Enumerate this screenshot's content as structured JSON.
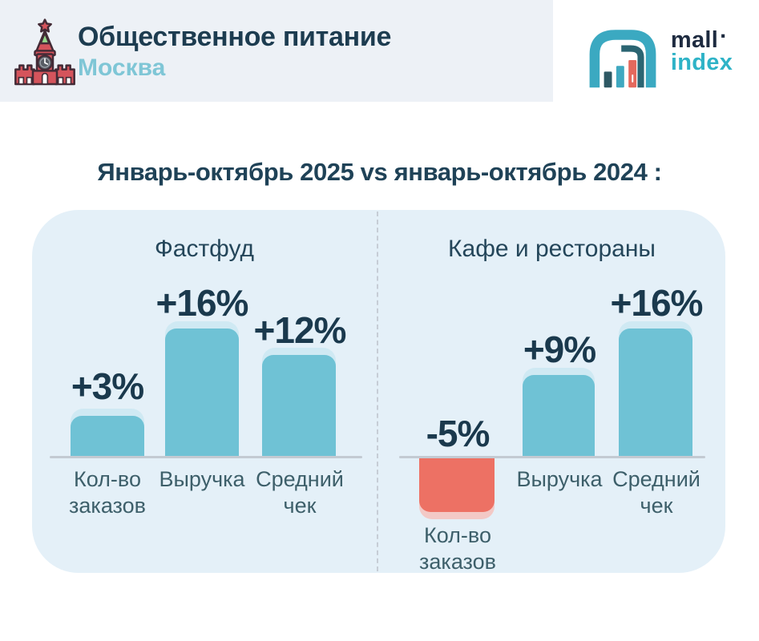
{
  "header": {
    "title": "Общественное питание",
    "subtitle": "Москва"
  },
  "logo": {
    "word1": "mall",
    "dot": ".",
    "word2": "index"
  },
  "heading": "Январь-октябрь 2025 vs январь-октябрь 2024 :",
  "chart_data": {
    "type": "bar",
    "title": "Январь-октябрь 2025 vs январь-октябрь 2024",
    "unit": "percent change year-over-year",
    "categories": [
      "Кол-во заказов",
      "Выручка",
      "Средний чек"
    ],
    "series": [
      {
        "name": "Фастфуд",
        "values": [
          3,
          16,
          12
        ],
        "labels": [
          "+3%",
          "+16%",
          "+12%"
        ]
      },
      {
        "name": "Кафе и рестораны",
        "values": [
          -5,
          9,
          16
        ],
        "labels": [
          "-5%",
          "+9%",
          "+16%"
        ]
      }
    ],
    "positive_color": "#6fc2d5",
    "negative_color": "#ed7164",
    "grid": false,
    "legend_position": "none"
  },
  "colors": {
    "header_bg": "#edf1f6",
    "panel_bg": "#e4f0f8",
    "bar_teal_cap": "#cfe9f3",
    "bar_red_cap": "#f3c9c6",
    "accent_navy": "#1a394d",
    "subtitle_teal": "#7fc6d6",
    "baseline_gray": "#c3cad2"
  }
}
